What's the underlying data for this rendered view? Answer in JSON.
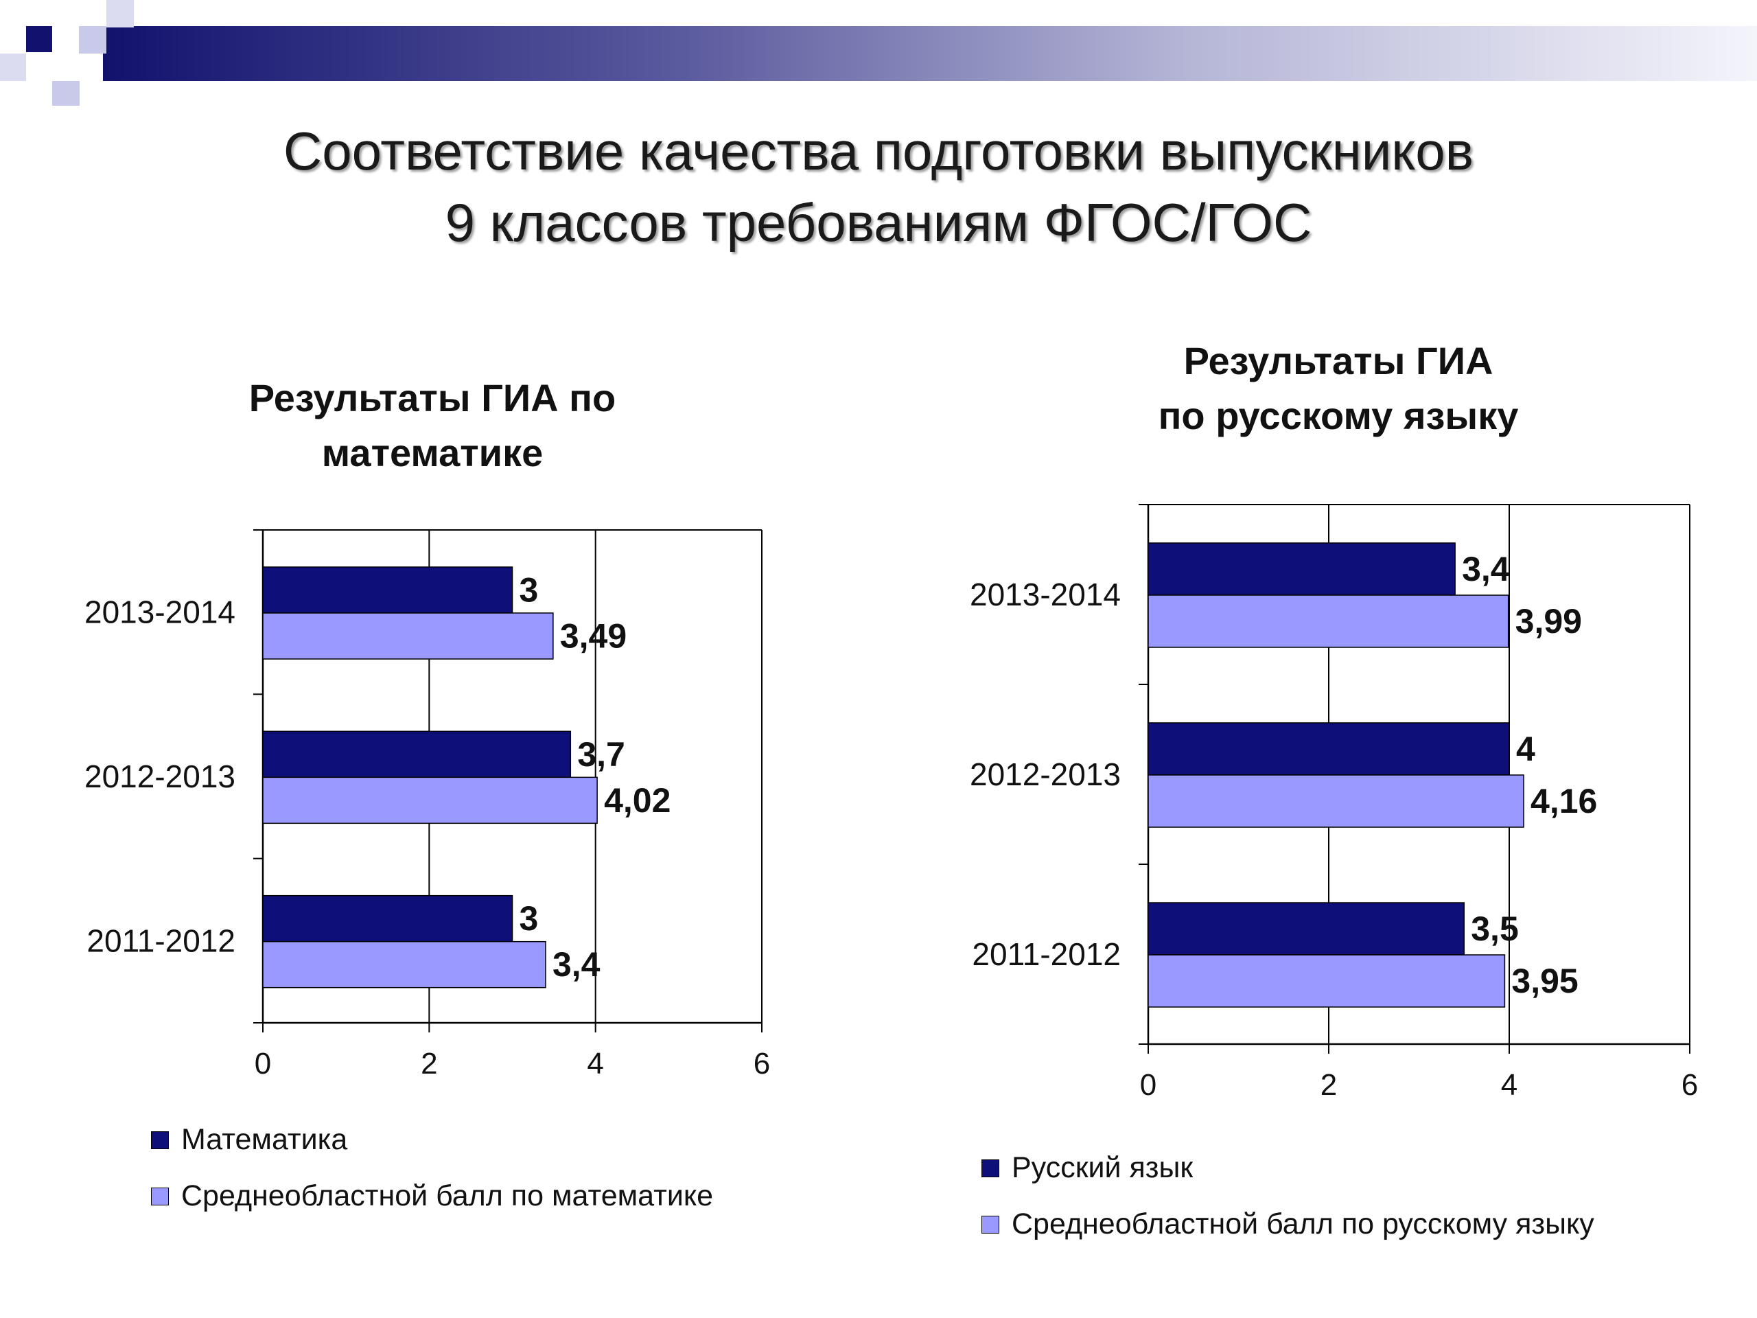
{
  "slide": {
    "title_lines": [
      "Соответствие качества подготовки выпускников",
      "9 классов требованиям ФГОС/ГОС"
    ]
  },
  "colors": {
    "series_dark": "#0f0f7a",
    "series_light": "#9999ff",
    "banner_dark": "#12126e",
    "deco_light": "#c9c9ea"
  },
  "chart_data": [
    {
      "type": "bar",
      "orientation": "horizontal",
      "title": "Результаты ГИА по математике",
      "title_lines": [
        "Результаты ГИА по",
        "математике"
      ],
      "categories": [
        "2013-2014",
        "2012-2013",
        "2011-2012"
      ],
      "series": [
        {
          "name": "Математика",
          "values": [
            3,
            3.7,
            3
          ],
          "labels": [
            "3",
            "3,7",
            "3"
          ]
        },
        {
          "name": "Среднеобластной балл по математике",
          "values": [
            3.49,
            4.02,
            3.4
          ],
          "labels": [
            "3,49",
            "4,02",
            "3,4"
          ]
        }
      ],
      "xlim": [
        0,
        6
      ],
      "ticks": [
        "0",
        "2",
        "4",
        "6"
      ],
      "grid": true,
      "legend_position": "bottom"
    },
    {
      "type": "bar",
      "orientation": "horizontal",
      "title": "Результаты ГИА по русскому языку",
      "title_lines": [
        "Результаты ГИА",
        "по русскому языку"
      ],
      "categories": [
        "2013-2014",
        "2012-2013",
        "2011-2012"
      ],
      "series": [
        {
          "name": "Русский язык",
          "values": [
            3.4,
            4,
            3.5
          ],
          "labels": [
            "3,4",
            "4",
            "3,5"
          ]
        },
        {
          "name": "Среднеобластной балл по русскому языку",
          "values": [
            3.99,
            4.16,
            3.95
          ],
          "labels": [
            "3,99",
            "4,16",
            "3,95"
          ]
        }
      ],
      "xlim": [
        0,
        6
      ],
      "ticks": [
        "0",
        "2",
        "4",
        "6"
      ],
      "grid": true,
      "legend_position": "bottom"
    }
  ]
}
